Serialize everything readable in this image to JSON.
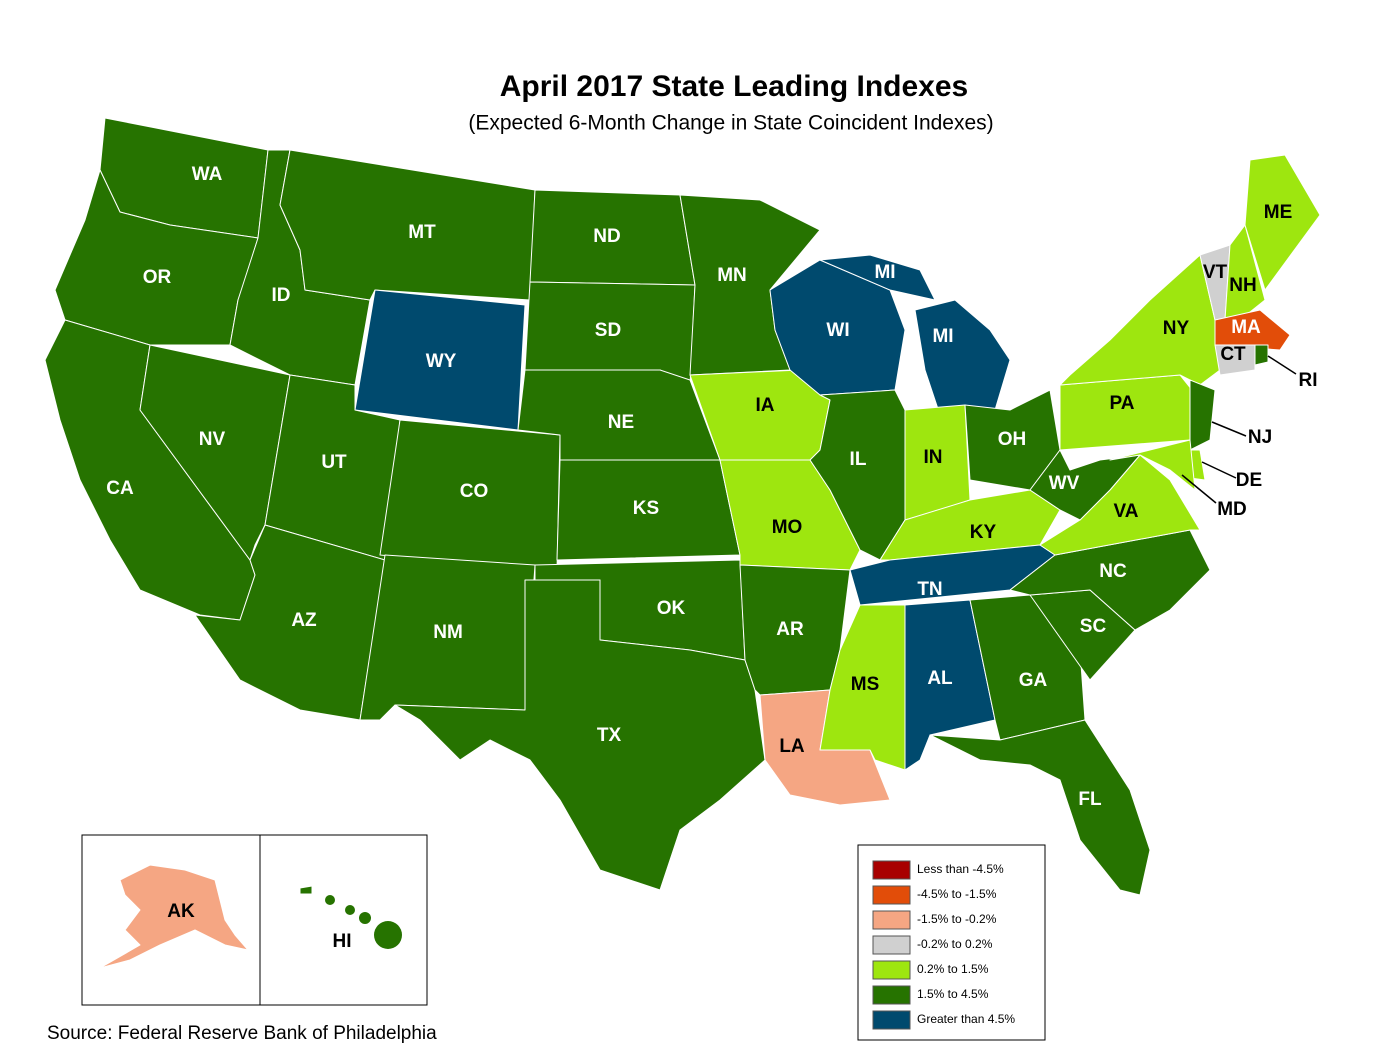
{
  "title": "April 2017 State Leading Indexes",
  "subtitle": "(Expected 6-Month Change in State Coincident Indexes)",
  "source": "Source: Federal Reserve Bank of Philadelphia",
  "legend": [
    {
      "label": "Less than -4.5%",
      "color": "#a80000"
    },
    {
      "label": "-4.5% to -1.5%",
      "color": "#e24d09"
    },
    {
      "label": "-1.5% to -0.2%",
      "color": "#f5a683"
    },
    {
      "label": "-0.2% to 0.2%",
      "color": "#d0d0d0"
    },
    {
      "label": "0.2% to 1.5%",
      "color": "#9ee60f"
    },
    {
      "label": "1.5% to 4.5%",
      "color": "#267300"
    },
    {
      "label": "Greater than 4.5%",
      "color": "#004a6e"
    }
  ],
  "states": [
    {
      "label": "WA",
      "color": "#267300"
    },
    {
      "label": "OR",
      "color": "#267300"
    },
    {
      "label": "CA",
      "color": "#267300"
    },
    {
      "label": "NV",
      "color": "#267300"
    },
    {
      "label": "ID",
      "color": "#267300"
    },
    {
      "label": "MT",
      "color": "#267300"
    },
    {
      "label": "WY",
      "color": "#004a6e"
    },
    {
      "label": "UT",
      "color": "#267300"
    },
    {
      "label": "CO",
      "color": "#267300"
    },
    {
      "label": "AZ",
      "color": "#267300"
    },
    {
      "label": "NM",
      "color": "#267300"
    },
    {
      "label": "ND",
      "color": "#267300"
    },
    {
      "label": "SD",
      "color": "#267300"
    },
    {
      "label": "NE",
      "color": "#267300"
    },
    {
      "label": "KS",
      "color": "#267300"
    },
    {
      "label": "OK",
      "color": "#267300"
    },
    {
      "label": "TX",
      "color": "#267300"
    },
    {
      "label": "MN",
      "color": "#267300"
    },
    {
      "label": "IA",
      "color": "#9ee60f"
    },
    {
      "label": "MO",
      "color": "#9ee60f"
    },
    {
      "label": "AR",
      "color": "#267300"
    },
    {
      "label": "LA",
      "color": "#f5a683"
    },
    {
      "label": "WI",
      "color": "#004a6e"
    },
    {
      "label": "MI",
      "color": "#004a6e"
    },
    {
      "label": "MI",
      "color": "#004a6e"
    },
    {
      "label": "IL",
      "color": "#267300"
    },
    {
      "label": "IN",
      "color": "#9ee60f"
    },
    {
      "label": "OH",
      "color": "#267300"
    },
    {
      "label": "KY",
      "color": "#9ee60f"
    },
    {
      "label": "TN",
      "color": "#004a6e"
    },
    {
      "label": "MS",
      "color": "#9ee60f"
    },
    {
      "label": "AL",
      "color": "#004a6e"
    },
    {
      "label": "GA",
      "color": "#267300"
    },
    {
      "label": "FL",
      "color": "#267300"
    },
    {
      "label": "SC",
      "color": "#267300"
    },
    {
      "label": "NC",
      "color": "#267300"
    },
    {
      "label": "VA",
      "color": "#9ee60f"
    },
    {
      "label": "WV",
      "color": "#267300"
    },
    {
      "label": "PA",
      "color": "#9ee60f"
    },
    {
      "label": "NY",
      "color": "#9ee60f"
    },
    {
      "label": "VT",
      "color": "#d0d0d0"
    },
    {
      "label": "NH",
      "color": "#9ee60f"
    },
    {
      "label": "ME",
      "color": "#9ee60f"
    },
    {
      "label": "MA",
      "color": "#e24d09"
    },
    {
      "label": "CT",
      "color": "#d0d0d0"
    },
    {
      "label": "RI",
      "color": "#267300"
    },
    {
      "label": "NJ",
      "color": "#267300"
    },
    {
      "label": "DE",
      "color": "#9ee60f"
    },
    {
      "label": "MD",
      "color": "#9ee60f"
    },
    {
      "label": "AK",
      "color": "#f5a683"
    },
    {
      "label": "HI",
      "color": "#267300"
    }
  ]
}
